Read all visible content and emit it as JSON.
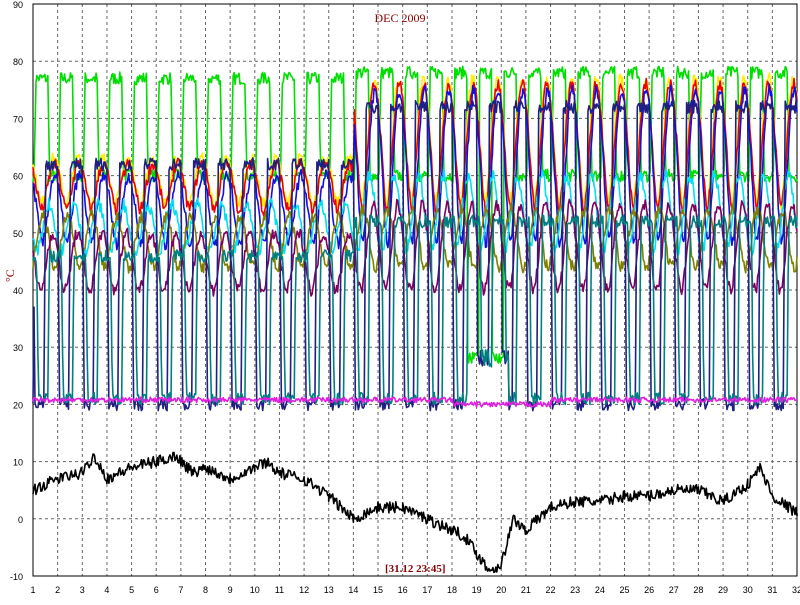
{
  "chart_data": {
    "type": "line",
    "title": "DEC 2009",
    "ylabel": "°C",
    "timestamp": "[31.12 23:45]",
    "ylim": [
      -10,
      90
    ],
    "xlim": [
      1,
      32
    ],
    "grid": true,
    "x_ticks": [
      "1",
      "2",
      "3",
      "4",
      "5",
      "6",
      "7",
      "8",
      "9",
      "10",
      "11",
      "12",
      "13",
      "14",
      "15",
      "16",
      "17",
      "18",
      "19",
      "20",
      "21",
      "22",
      "23",
      "24",
      "25",
      "26",
      "27",
      "28",
      "29",
      "30",
      "31",
      "32"
    ],
    "y_ticks": [
      "-10",
      "0",
      "10",
      "20",
      "30",
      "40",
      "50",
      "60",
      "70",
      "80",
      "90"
    ],
    "series": [
      {
        "color": "#00dd00",
        "kind": "cycle",
        "low": 60,
        "high": 77,
        "shape": "square",
        "phase": 0.05,
        "late_high": 78
      },
      {
        "color": "#ffee00",
        "kind": "cycle",
        "low": 55,
        "high": 63,
        "shape": "pulse",
        "phase": 0.35,
        "late_high": 77
      },
      {
        "color": "#ee0000",
        "kind": "cycle",
        "low": 54,
        "high": 62,
        "shape": "pulse",
        "phase": 0.36,
        "late_high": 76
      },
      {
        "color": "#1010e0",
        "kind": "cycle",
        "low": 48,
        "high": 60,
        "shape": "pulse",
        "phase": 0.38,
        "late_high": 75
      },
      {
        "color": "#00e0f0",
        "kind": "cycle",
        "low": 47,
        "high": 55,
        "shape": "smooth",
        "phase": 0.4,
        "late_high": 60
      },
      {
        "color": "#808000",
        "kind": "cycle",
        "low": 44,
        "high": 53,
        "shape": "smooth",
        "phase": 0.15,
        "late_high": 54
      },
      {
        "color": "#800060",
        "kind": "cycle",
        "low": 40,
        "high": 50,
        "shape": "smooth",
        "phase": 0.55,
        "late_high": 55
      },
      {
        "color": "#202080",
        "kind": "cycle",
        "low": 20,
        "high": 62,
        "shape": "square",
        "phase": 0.45,
        "late_high": 72
      },
      {
        "color": "#008080",
        "kind": "cycle",
        "low": 21,
        "high": 46,
        "shape": "square",
        "phase": 0.6,
        "late_high": 52
      },
      {
        "color": "#e020e0",
        "kind": "flat",
        "value": 20.8
      },
      {
        "color": "#000000",
        "kind": "points",
        "x": [
          1,
          2,
          3,
          3.5,
          4,
          5,
          6,
          6.8,
          7.5,
          8,
          9,
          10,
          10.5,
          11,
          12,
          13,
          14,
          15,
          16,
          17,
          18,
          18.5,
          19,
          19.5,
          20,
          20.5,
          21,
          22,
          23,
          24,
          25,
          26,
          27,
          28,
          29,
          30,
          30.5,
          31,
          32
        ],
        "y": [
          5,
          7,
          8,
          11,
          7,
          9,
          10,
          11,
          8,
          9,
          7,
          9,
          10,
          8,
          7,
          4,
          0,
          2,
          2,
          0,
          -2,
          -3,
          -6,
          -9,
          -8,
          0,
          -2,
          2,
          3,
          3,
          4,
          4,
          5,
          5,
          3,
          6,
          9,
          4,
          1
        ]
      }
    ]
  }
}
